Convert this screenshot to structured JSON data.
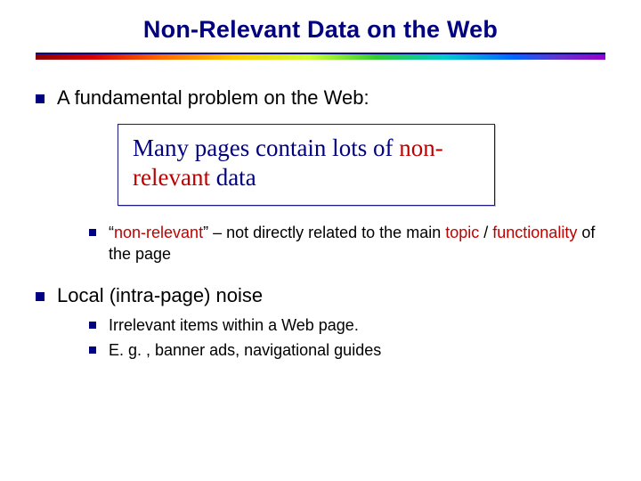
{
  "colors": {
    "title": "#000080",
    "bullet": "#000080",
    "body_text": "#000000",
    "callout_border": "#1a1a7a",
    "callout_text": "#000080",
    "accent_word": "#c00000",
    "divider_line": "#000080",
    "divider_gradient": [
      "#8b0000",
      "#d80000",
      "#ff6a00",
      "#ffcc00",
      "#ccff33",
      "#33cc33",
      "#00cccc",
      "#0066ff",
      "#6633cc",
      "#9900cc"
    ],
    "background": "#ffffff"
  },
  "fonts": {
    "title_family": "Verdana",
    "body_family": "Verdana",
    "callout_family": "Comic Sans MS",
    "title_size_pt": 20,
    "body_lvl1_size_pt": 17,
    "body_lvl2_size_pt": 14,
    "callout_size_pt": 20
  },
  "title": "Non-Relevant Data on the Web",
  "bullets": [
    {
      "text": "A fundamental problem on the Web:",
      "callout": {
        "pre": "Many pages contain lots of ",
        "accent": "non-relevant",
        "post": " data"
      },
      "sub": [
        {
          "parts": [
            {
              "t": "“"
            },
            {
              "t": "non-relevant",
              "accent": true
            },
            {
              "t": "” – not directly related to the main "
            },
            {
              "t": "topic",
              "accent": true
            },
            {
              "t": " / "
            },
            {
              "t": "functionality",
              "accent": true
            },
            {
              "t": " of the page"
            }
          ]
        }
      ]
    },
    {
      "text_parts": [
        {
          "t": "Local"
        },
        {
          "t": " (intra-page) noise"
        }
      ],
      "sub": [
        {
          "parts": [
            {
              "t": "Irrelevant"
            },
            {
              "t": " items within a Web page."
            }
          ]
        },
        {
          "parts": [
            {
              "t": "E. g. , banner ads, navigational guides"
            }
          ]
        }
      ]
    }
  ]
}
